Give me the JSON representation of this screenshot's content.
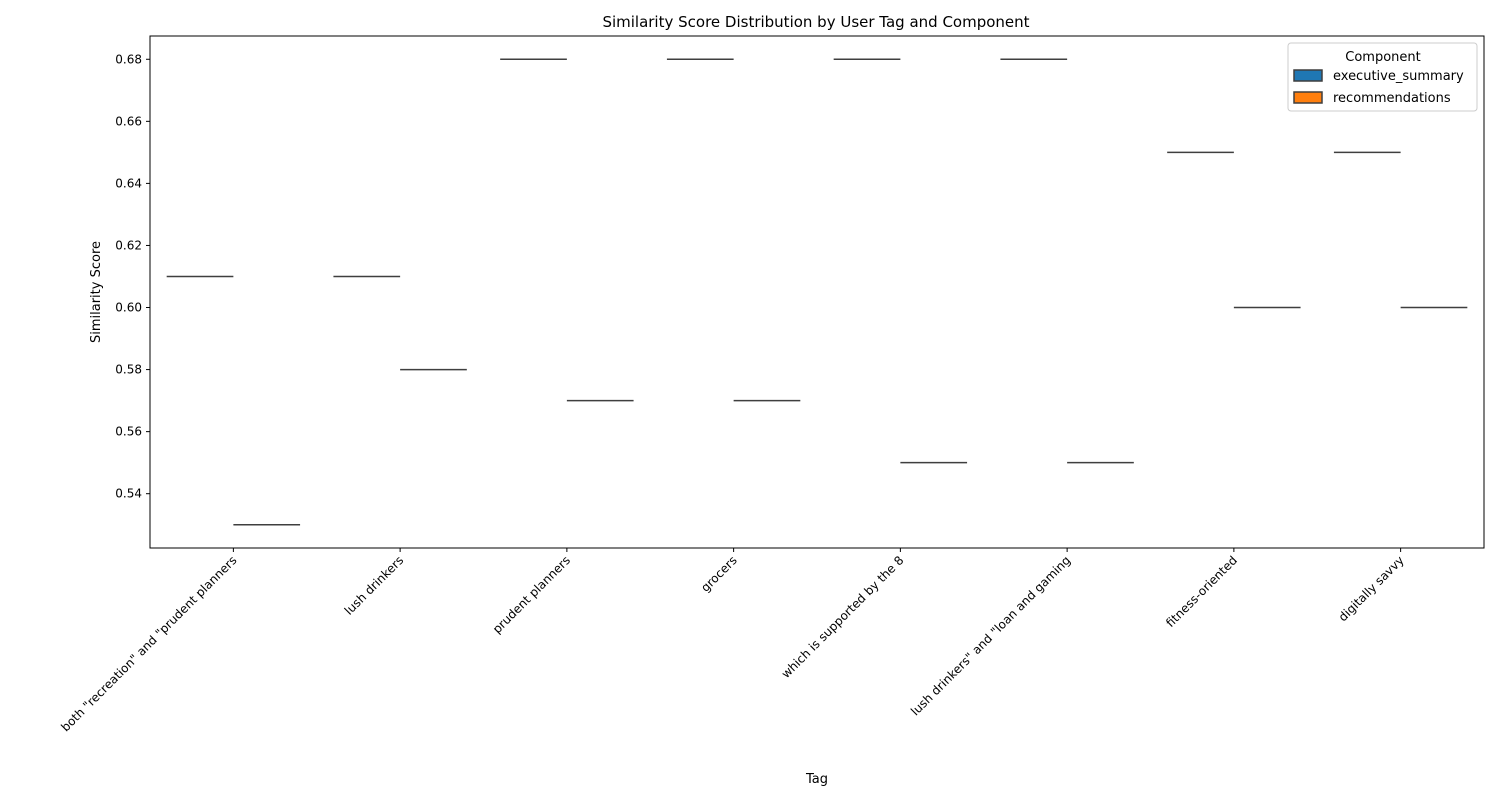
{
  "chart_data": {
    "type": "box",
    "title": "Similarity Score Distribution by User Tag and Component",
    "xlabel": "Tag",
    "ylabel": "Similarity Score",
    "ylim": [
      0.5225,
      0.6875
    ],
    "yticks": [
      0.54,
      0.56,
      0.58,
      0.6,
      0.62,
      0.64,
      0.66,
      0.68
    ],
    "categories": [
      "both \"recreation\" and \"prudent planners",
      "lush drinkers",
      "prudent planners",
      "grocers",
      "which is supported by the 8",
      "lush drinkers\" and \"loan and gaming",
      "fitness-oriented",
      "digitally savvy"
    ],
    "series": [
      {
        "name": "executive_summary",
        "color": "#1f77b4",
        "values": [
          0.61,
          0.61,
          0.68,
          0.68,
          0.68,
          0.68,
          0.65,
          0.65
        ]
      },
      {
        "name": "recommendations",
        "color": "#ff7f0e",
        "values": [
          0.53,
          0.58,
          0.57,
          0.57,
          0.55,
          0.55,
          0.6,
          0.6
        ]
      }
    ],
    "legend": {
      "title": "Component",
      "position": "top-right"
    },
    "grid": false
  }
}
